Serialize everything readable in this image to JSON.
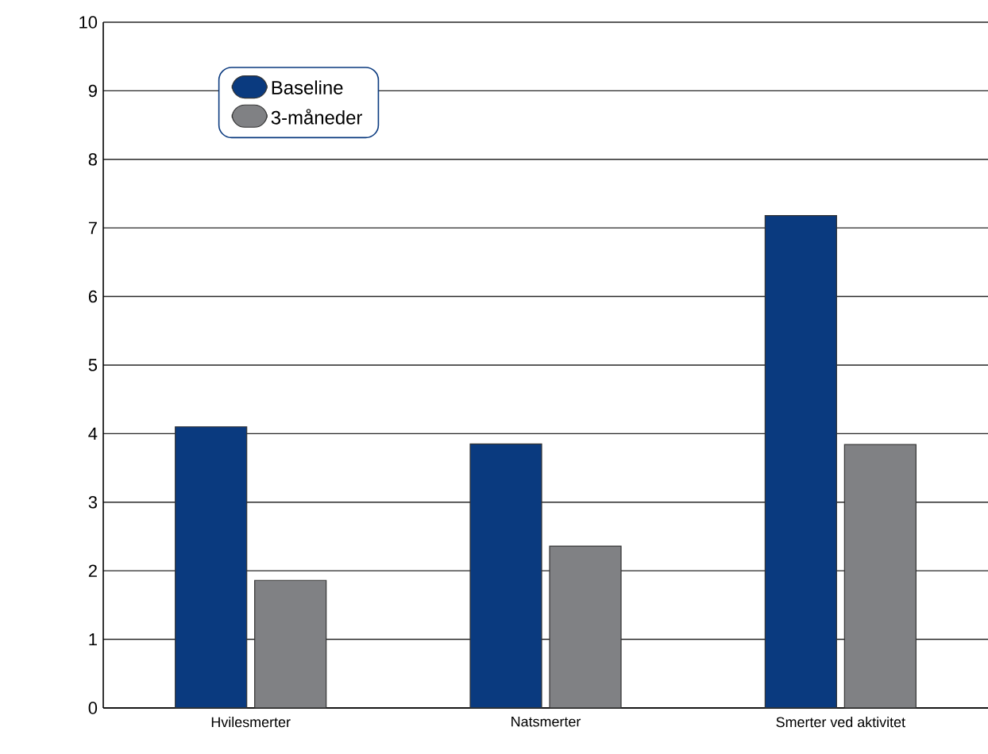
{
  "chart_data": {
    "type": "bar",
    "categories": [
      "Hvilesmerter",
      "Natsmerter",
      "Smerter ved aktivitet"
    ],
    "series": [
      {
        "name": "Baseline",
        "color": "#0a3a7f",
        "values": [
          4.1,
          3.85,
          7.18
        ]
      },
      {
        "name": "3-måneder",
        "color": "#808184",
        "values": [
          1.86,
          2.36,
          3.84
        ]
      }
    ],
    "ylim": [
      0,
      10
    ],
    "yticks": [
      0,
      1,
      2,
      3,
      4,
      5,
      6,
      7,
      8,
      9,
      10
    ],
    "grid": "y",
    "legend": "top left"
  }
}
